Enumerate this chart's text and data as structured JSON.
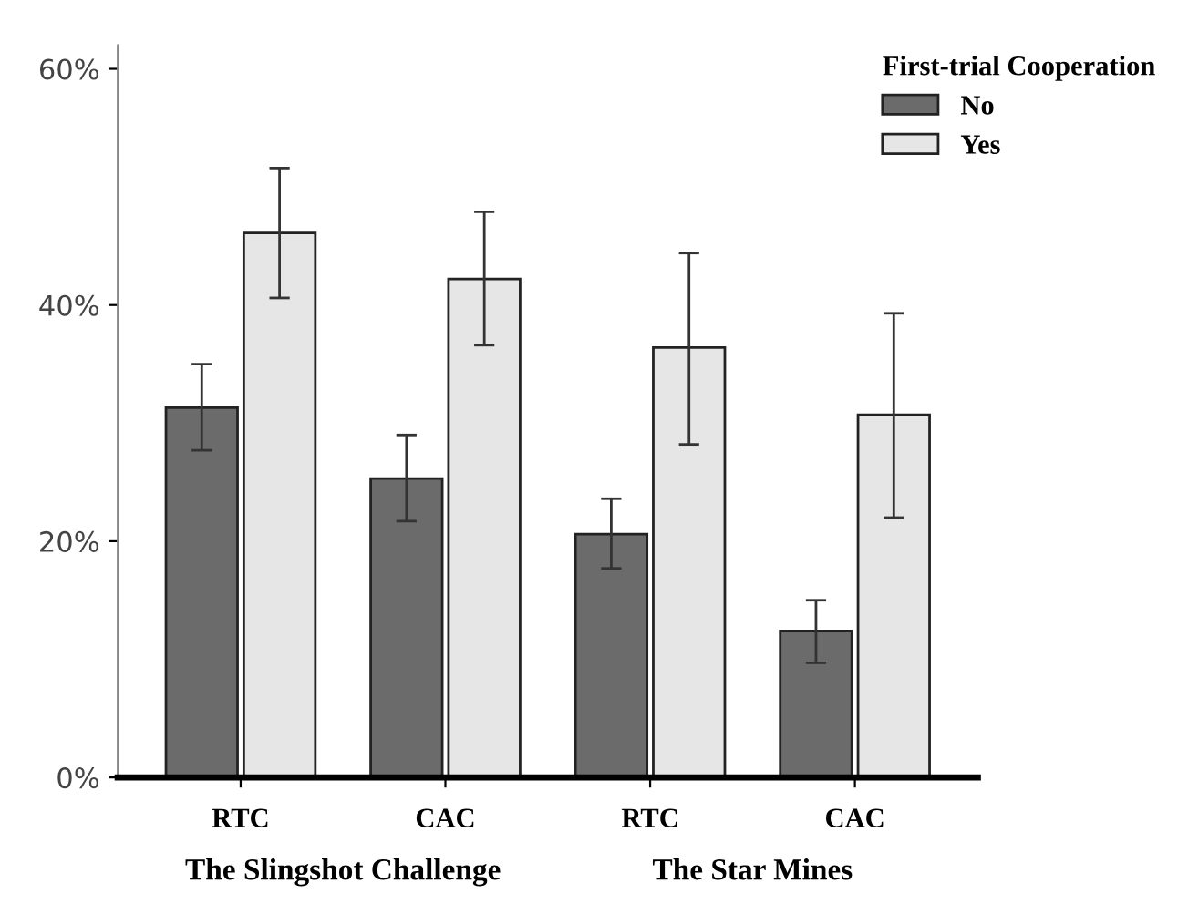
{
  "chart_data": {
    "type": "bar",
    "categories": [
      "RTC",
      "CAC",
      "RTC",
      "CAC"
    ],
    "series": [
      {
        "name": "No",
        "color": "#6b6b6b",
        "values": [
          31.3,
          25.3,
          20.6,
          12.4
        ],
        "errors": [
          [
            27.7,
            35.0
          ],
          [
            21.7,
            29.0
          ],
          [
            17.7,
            23.6
          ],
          [
            9.7,
            15.0
          ]
        ]
      },
      {
        "name": "Yes",
        "color": "#e6e6e6",
        "values": [
          46.1,
          42.2,
          36.4,
          30.7
        ],
        "errors": [
          [
            40.6,
            51.6
          ],
          [
            36.6,
            47.9
          ],
          [
            28.2,
            44.4
          ],
          [
            22.0,
            39.3
          ]
        ]
      }
    ],
    "legend_title": "First-trial Cooperation",
    "legend": "top right",
    "annotations": [
      "The Slingshot Challenge",
      "The Star Mines"
    ],
    "ylim": [
      0,
      62
    ],
    "yticks": [
      {
        "value": 0,
        "label": "0%"
      },
      {
        "value": 20,
        "label": "20%"
      },
      {
        "value": 40,
        "label": "40%"
      },
      {
        "value": 60,
        "label": "60%"
      }
    ],
    "grid": false
  }
}
